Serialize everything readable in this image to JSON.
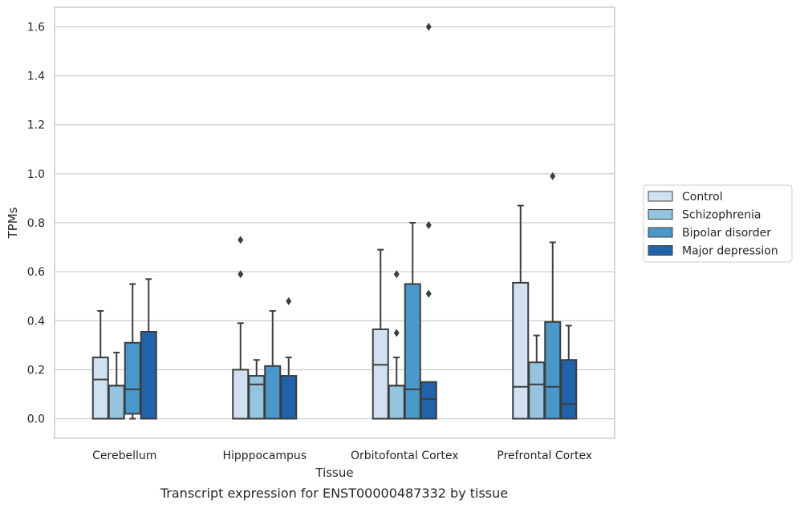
{
  "chart_data": {
    "type": "box",
    "xlabel": "Tissue",
    "ylabel": "TPMs",
    "caption": "Transcript expression for ENST00000487332 by tissue",
    "ylim": [
      -0.08,
      1.68
    ],
    "yticks": [
      0.0,
      0.2,
      0.4,
      0.6,
      0.8,
      1.0,
      1.2,
      1.4,
      1.6
    ],
    "ytick_labels": [
      "0.0",
      "0.2",
      "0.4",
      "0.6",
      "0.8",
      "1.0",
      "1.2",
      "1.4",
      "1.6"
    ],
    "grid": "horizontal",
    "legend_position": "right",
    "categories": [
      "Cerebellum",
      "Hipppocampus",
      "Orbitofontal Cortex",
      "Prefrontal Cortex"
    ],
    "series": [
      {
        "name": "Control",
        "color": "#d0e1f2",
        "boxes": [
          {
            "min": 0.0,
            "q1": 0.0,
            "median": 0.16,
            "q3": 0.25,
            "max": 0.44,
            "outliers": []
          },
          {
            "min": 0.0,
            "q1": 0.0,
            "median": 0.0,
            "q3": 0.2,
            "max": 0.39,
            "outliers": [
              0.59,
              0.73
            ]
          },
          {
            "min": 0.0,
            "q1": 0.0,
            "median": 0.22,
            "q3": 0.365,
            "max": 0.69,
            "outliers": []
          },
          {
            "min": 0.0,
            "q1": 0.0,
            "median": 0.13,
            "q3": 0.555,
            "max": 0.87,
            "outliers": []
          }
        ]
      },
      {
        "name": "Schizophrenia",
        "color": "#94c4df",
        "boxes": [
          {
            "min": 0.0,
            "q1": 0.0,
            "median": 0.135,
            "q3": 0.135,
            "max": 0.27,
            "outliers": []
          },
          {
            "min": 0.0,
            "q1": 0.0,
            "median": 0.14,
            "q3": 0.175,
            "max": 0.24,
            "outliers": []
          },
          {
            "min": 0.0,
            "q1": 0.0,
            "median": 0.135,
            "q3": 0.135,
            "max": 0.25,
            "outliers": [
              0.35,
              0.59
            ]
          },
          {
            "min": 0.0,
            "q1": 0.0,
            "median": 0.14,
            "q3": 0.23,
            "max": 0.34,
            "outliers": []
          }
        ]
      },
      {
        "name": "Bipolar disorder",
        "color": "#4a98c9",
        "boxes": [
          {
            "min": 0.0,
            "q1": 0.02,
            "median": 0.12,
            "q3": 0.31,
            "max": 0.55,
            "outliers": []
          },
          {
            "min": 0.0,
            "q1": 0.0,
            "median": 0.0,
            "q3": 0.215,
            "max": 0.44,
            "outliers": []
          },
          {
            "min": 0.0,
            "q1": 0.0,
            "median": 0.12,
            "q3": 0.55,
            "max": 0.8,
            "outliers": []
          },
          {
            "min": 0.0,
            "q1": 0.0,
            "median": 0.13,
            "q3": 0.395,
            "max": 0.72,
            "outliers": [
              0.99
            ]
          }
        ]
      },
      {
        "name": "Major depression",
        "color": "#2163aa",
        "boxes": [
          {
            "min": 0.0,
            "q1": 0.0,
            "median": 0.0,
            "q3": 0.355,
            "max": 0.57,
            "outliers": []
          },
          {
            "min": 0.0,
            "q1": 0.0,
            "median": 0.0,
            "q3": 0.175,
            "max": 0.25,
            "outliers": [
              0.48
            ]
          },
          {
            "min": 0.0,
            "q1": 0.0,
            "median": 0.08,
            "q3": 0.15,
            "max": 0.15,
            "outliers": [
              0.51,
              0.79,
              1.6
            ]
          },
          {
            "min": 0.0,
            "q1": 0.0,
            "median": 0.06,
            "q3": 0.24,
            "max": 0.38,
            "outliers": []
          }
        ]
      }
    ]
  }
}
